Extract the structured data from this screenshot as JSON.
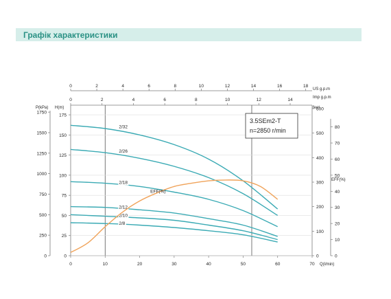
{
  "header": {
    "title": "Графік характеристики"
  },
  "chart_data": {
    "type": "line",
    "info_box": {
      "model": "3.5SEm2-T",
      "speed": "n=2850 r/min"
    },
    "axes": {
      "x_bottom": {
        "label": "Q(l/min)",
        "ticks": [
          "0",
          "10",
          "20",
          "30",
          "40",
          "50",
          "60",
          "70"
        ],
        "range": [
          0,
          70
        ]
      },
      "x_top_us": {
        "label": "US g.p.m",
        "ticks": [
          "0",
          "2",
          "4",
          "6",
          "8",
          "10",
          "12",
          "14",
          "16",
          "18"
        ],
        "range": [
          0,
          18.49
        ]
      },
      "x_top_imp": {
        "label": "Imp g.p.m",
        "ticks": [
          "0",
          "2",
          "4",
          "6",
          "8",
          "10",
          "12",
          "14"
        ],
        "range": [
          0,
          15.4
        ]
      },
      "y_left_kpa": {
        "label": "P(kPa)",
        "ticks": [
          "0",
          "250",
          "500",
          "750",
          "1000",
          "1250",
          "1500",
          "1750"
        ],
        "range": [
          0,
          1835
        ]
      },
      "y_left_m": {
        "label": "H(m)",
        "ticks": [
          "0",
          "25",
          "50",
          "75",
          "100",
          "125",
          "150",
          "175"
        ],
        "range": [
          0,
          187
        ]
      },
      "y_right_feet": {
        "label": "feet",
        "ticks": [
          "0",
          "100",
          "200",
          "300",
          "400",
          "500",
          "600"
        ],
        "range": [
          0,
          614
        ]
      },
      "y_right_eff": {
        "label": "EFF(%)",
        "ticks": [
          "0",
          "10",
          "20",
          "30",
          "40",
          "50",
          "60",
          "70",
          "80"
        ],
        "range": [
          0,
          93.5
        ]
      }
    },
    "reference_lines_x": [
      10,
      52.5
    ],
    "series": [
      {
        "name": "2/32",
        "x": [
          0,
          10,
          20,
          30,
          40,
          50,
          60
        ],
        "y": [
          162,
          158,
          150,
          138,
          120,
          93,
          58
        ]
      },
      {
        "name": "2/26",
        "x": [
          0,
          10,
          20,
          30,
          40,
          50,
          60
        ],
        "y": [
          132,
          128,
          121,
          111,
          97,
          77,
          50
        ]
      },
      {
        "name": "2/18",
        "x": [
          0,
          10,
          20,
          30,
          40,
          50,
          60
        ],
        "y": [
          92,
          90,
          86,
          79,
          70,
          56,
          36
        ]
      },
      {
        "name": "2/12",
        "x": [
          0,
          10,
          20,
          30,
          40,
          50,
          60
        ],
        "y": [
          61,
          60,
          57,
          53,
          46,
          38,
          24
        ]
      },
      {
        "name": "2/10",
        "x": [
          0,
          10,
          20,
          30,
          40,
          50,
          60
        ],
        "y": [
          51,
          49,
          47,
          44,
          38,
          31,
          20
        ]
      },
      {
        "name": "2/8",
        "x": [
          0,
          10,
          20,
          30,
          40,
          50,
          60
        ],
        "y": [
          41,
          40,
          38,
          35,
          31,
          26,
          17
        ]
      },
      {
        "name": "EFF(%)",
        "axis": "y_right_eff",
        "x": [
          0,
          5,
          10,
          15,
          20,
          25,
          30,
          35,
          40,
          45,
          50,
          55,
          60
        ],
        "y": [
          2,
          8,
          18,
          27,
          34,
          39,
          43,
          45,
          46.5,
          47,
          46.5,
          43,
          35
        ]
      }
    ],
    "colors": {
      "head_curves": "#3aaab4",
      "eff_curve": "#f0a35a",
      "grid": "#7a7a7a",
      "header_bg": "#d6eeea",
      "header_text": "#2a9184"
    }
  }
}
